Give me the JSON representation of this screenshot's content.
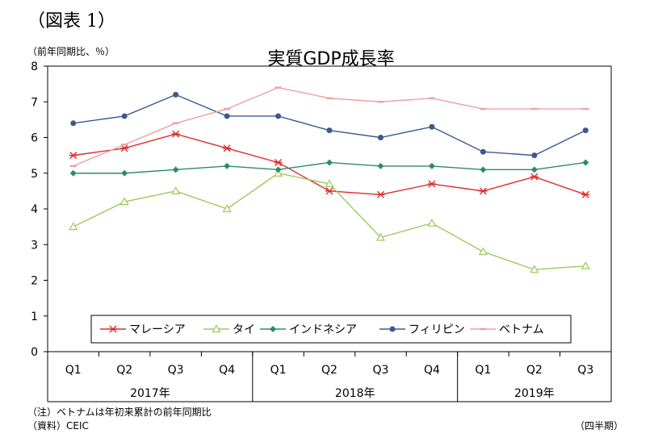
{
  "figure_label": "（図表 1）",
  "notes": {
    "note": "（注）ベトナムは年初来累計の前年同期比",
    "source": "（資料）CEIC",
    "period_unit": "（四半期）"
  },
  "chart_data": {
    "type": "line",
    "title": "実質GDP成長率",
    "ylabel": "（前年同期比、％）",
    "xlabel": "",
    "ylim": [
      0,
      8
    ],
    "yticks": [
      0,
      1,
      2,
      3,
      4,
      5,
      6,
      7,
      8
    ],
    "grid": false,
    "legend_position": "bottom-center (inside plot)",
    "categories": [
      "Q1",
      "Q2",
      "Q3",
      "Q4",
      "Q1",
      "Q2",
      "Q3",
      "Q4",
      "Q1",
      "Q2",
      "Q3"
    ],
    "year_groups": [
      {
        "label": "2017年",
        "count": 4
      },
      {
        "label": "2018年",
        "count": 4
      },
      {
        "label": "2019年",
        "count": 3
      }
    ],
    "series": [
      {
        "name": "マレーシア",
        "color": "#e02b2b",
        "marker": "asterisk",
        "values": [
          5.5,
          5.7,
          6.1,
          5.7,
          5.3,
          4.5,
          4.4,
          4.7,
          4.5,
          4.9,
          4.4
        ]
      },
      {
        "name": "タイ",
        "color": "#9bcb59",
        "marker": "triangle-open",
        "values": [
          3.5,
          4.2,
          4.5,
          4.0,
          5.0,
          4.7,
          3.2,
          3.6,
          2.8,
          2.3,
          2.4
        ]
      },
      {
        "name": "インドネシア",
        "color": "#2e8b6a",
        "marker": "diamond",
        "values": [
          5.0,
          5.0,
          5.1,
          5.2,
          5.1,
          5.3,
          5.2,
          5.2,
          5.1,
          5.1,
          5.3
        ]
      },
      {
        "name": "フィリピン",
        "color": "#3a5a8f",
        "marker": "circle",
        "values": [
          6.4,
          6.6,
          7.2,
          6.6,
          6.6,
          6.2,
          6.0,
          6.3,
          5.6,
          5.5,
          6.2
        ]
      },
      {
        "name": "ベトナム",
        "color": "#f0a0a0",
        "marker": "dash",
        "values": [
          5.2,
          5.8,
          6.4,
          6.8,
          7.4,
          7.1,
          7.0,
          7.1,
          6.8,
          6.8,
          6.8
        ]
      }
    ]
  }
}
